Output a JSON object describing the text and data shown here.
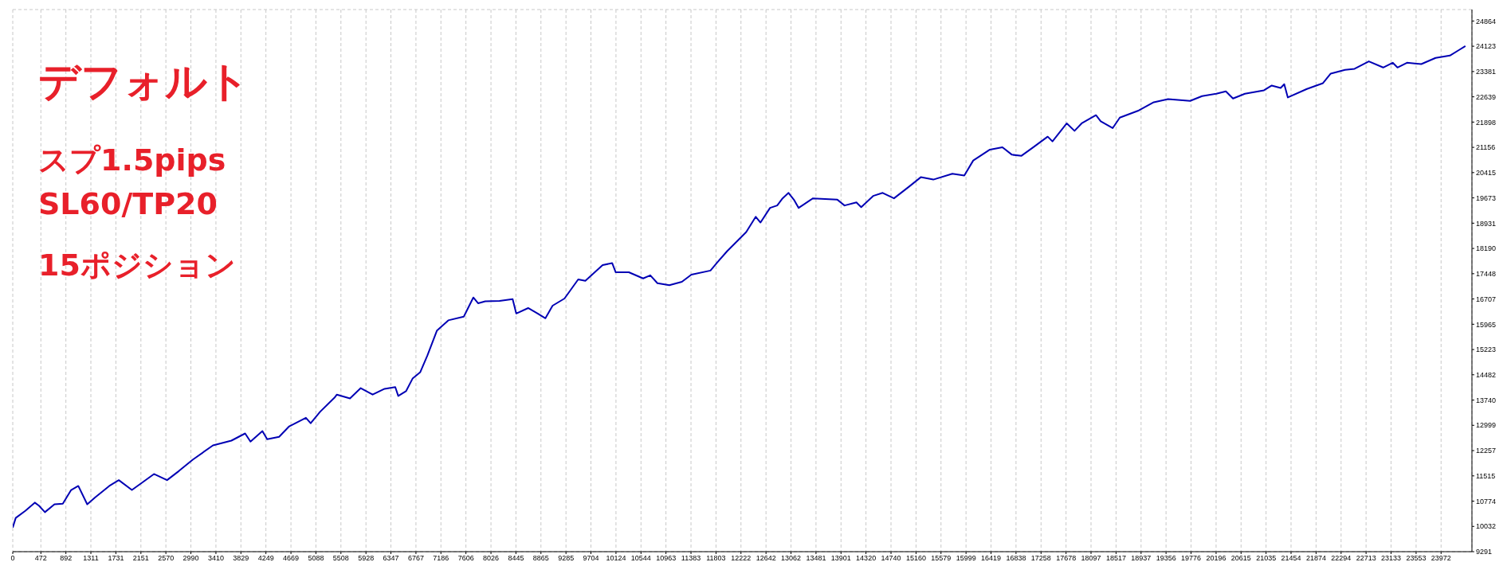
{
  "chart_data": {
    "type": "line",
    "annotations": [
      "デフォルト",
      "スプ1.5pips",
      "SL60/TP20",
      "15ポジション"
    ],
    "x": [
      0,
      50,
      210,
      370,
      440,
      540,
      700,
      840,
      980,
      1100,
      1250,
      1380,
      1620,
      1780,
      2000,
      2190,
      2370,
      2590,
      2790,
      3020,
      3360,
      3670,
      3900,
      3990,
      4190,
      4270,
      4470,
      4640,
      4920,
      5000,
      5160,
      5400,
      5440,
      5660,
      5840,
      6040,
      6240,
      6420,
      6470,
      6600,
      6710,
      6840,
      6960,
      7120,
      7310,
      7570,
      7730,
      7810,
      7930,
      8170,
      8390,
      8450,
      8650,
      8810,
      8940,
      9060,
      9260,
      9490,
      9610,
      9900,
      10060,
      10120,
      10340,
      10580,
      10700,
      10820,
      11020,
      11230,
      11390,
      11710,
      11830,
      11990,
      12150,
      12310,
      12470,
      12550,
      12710,
      12830,
      12920,
      13020,
      13110,
      13190,
      13430,
      13840,
      13960,
      14160,
      14240,
      14440,
      14600,
      14790,
      15040,
      15240,
      15450,
      15770,
      15970,
      16120,
      16400,
      16610,
      16770,
      16930,
      17130,
      17370,
      17450,
      17690,
      17820,
      17940,
      18180,
      18260,
      18460,
      18580,
      18900,
      19150,
      19390,
      19760,
      19960,
      20200,
      20360,
      20480,
      20680,
      21000,
      21130,
      21280,
      21340,
      21400,
      21720,
      21990,
      22120,
      22360,
      22520,
      22760,
      23000,
      23160,
      23240,
      23400,
      23640,
      23880,
      24120,
      24280,
      24380
    ],
    "series": [
      {
        "color": "#0000b4",
        "values": [
          10000,
          10280,
          10490,
          10730,
          10640,
          10450,
          10680,
          10700,
          11100,
          11220,
          10680,
          10880,
          11220,
          11390,
          11100,
          11340,
          11570,
          11390,
          11660,
          11990,
          12410,
          12550,
          12760,
          12520,
          12830,
          12590,
          12660,
          12970,
          13220,
          13060,
          13400,
          13810,
          13900,
          13790,
          14090,
          13900,
          14070,
          14120,
          13860,
          14000,
          14370,
          14560,
          15050,
          15780,
          16080,
          16190,
          16750,
          16580,
          16640,
          16650,
          16700,
          16280,
          16440,
          16280,
          16140,
          16510,
          16720,
          17280,
          17240,
          17700,
          17760,
          17490,
          17490,
          17310,
          17400,
          17170,
          17110,
          17210,
          17420,
          17540,
          17790,
          18110,
          18390,
          18670,
          19120,
          18950,
          19380,
          19450,
          19660,
          19820,
          19620,
          19380,
          19660,
          19620,
          19450,
          19540,
          19400,
          19730,
          19820,
          19660,
          20000,
          20280,
          20210,
          20380,
          20330,
          20770,
          21090,
          21160,
          20940,
          20910,
          21160,
          21470,
          21330,
          21860,
          21640,
          21860,
          22100,
          21920,
          21720,
          22030,
          22240,
          22480,
          22570,
          22520,
          22660,
          22730,
          22800,
          22590,
          22730,
          22830,
          22970,
          22900,
          23010,
          22620,
          22870,
          23040,
          23320,
          23430,
          23460,
          23680,
          23500,
          23640,
          23500,
          23640,
          23600,
          23780,
          23850,
          24020,
          24130
        ]
      }
    ],
    "xlim": [
      0,
      24490
    ],
    "ylim": [
      9291,
      25200
    ],
    "xticks": [
      0,
      472,
      892,
      1311,
      1731,
      2151,
      2570,
      2990,
      3410,
      3829,
      4249,
      4669,
      5088,
      5508,
      5928,
      6347,
      6767,
      7186,
      7606,
      8026,
      8445,
      8865,
      9285,
      9704,
      10124,
      10544,
      10963,
      11383,
      11803,
      12222,
      12642,
      13062,
      13481,
      13901,
      14320,
      14740,
      15160,
      15579,
      15999,
      16419,
      16838,
      17258,
      17678,
      18097,
      18517,
      18937,
      19356,
      19776,
      20196,
      20615,
      21035,
      21454,
      21874,
      22294,
      22713,
      23133,
      23553,
      23972
    ],
    "yticks": [
      9291,
      10032,
      10774,
      11515,
      12257,
      12999,
      13740,
      14482,
      15223,
      15965,
      16707,
      17448,
      18190,
      18931,
      19673,
      20415,
      21156,
      21898,
      22639,
      23381,
      24123,
      24864
    ],
    "grid": true,
    "marker": "none",
    "line_style": "solid"
  }
}
